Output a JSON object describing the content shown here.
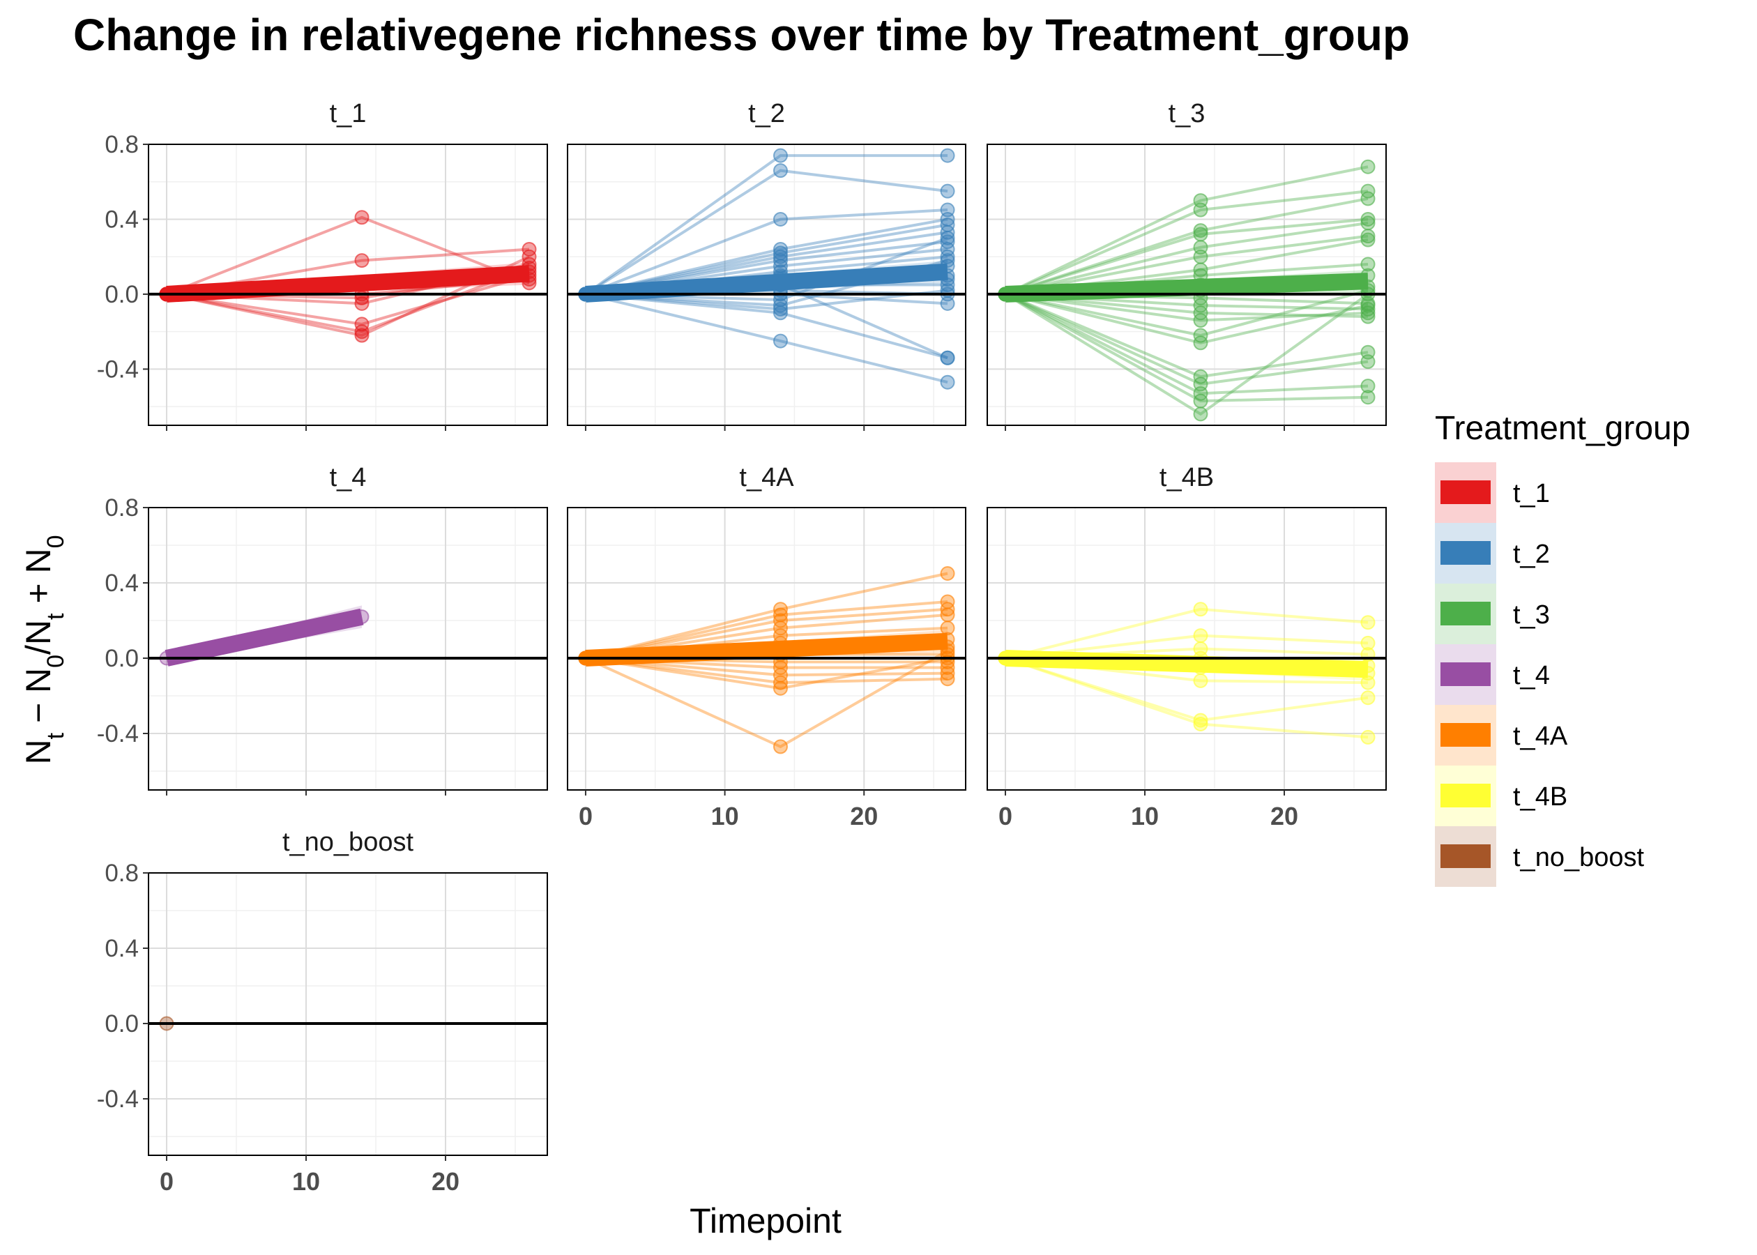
{
  "chart_data": {
    "type": "line",
    "title": "Change in relativegene richness over time by Treatment_group",
    "xlabel": "Timepoint",
    "ylabel_parts": [
      "N",
      "t",
      " − N",
      "0",
      "/N",
      "t",
      " + N",
      "0"
    ],
    "ylim": [
      -0.7,
      0.8
    ],
    "xlim": [
      -1.3,
      27.3
    ],
    "y_ticks": [
      0.8,
      0.4,
      0.0,
      -0.4
    ],
    "y_tick_labels": [
      "0.8",
      "0.4",
      "0.0",
      "-0.4"
    ],
    "x_ticks": [
      0,
      10,
      20
    ],
    "x_tick_labels": [
      "0",
      "10",
      "20"
    ],
    "grid": true,
    "legend": {
      "title": "Treatment_group",
      "position": "right",
      "entries": [
        "t_1",
        "t_2",
        "t_3",
        "t_4",
        "t_4A",
        "t_4B",
        "t_no_boost"
      ]
    },
    "colors": {
      "t_1": "#E41A1C",
      "t_2": "#377EB8",
      "t_3": "#4DAF4A",
      "t_4": "#984EA3",
      "t_4A": "#FF7F00",
      "t_4B": "#FFFF33",
      "t_no_boost": "#A65628"
    },
    "panels": [
      {
        "name": "t_1",
        "trend": [
          [
            0,
            0.0
          ],
          [
            26,
            0.11
          ]
        ],
        "series": [
          [
            [
              0,
              0
            ],
            [
              14,
              0.41
            ],
            [
              26,
              0.06
            ]
          ],
          [
            [
              0,
              0
            ],
            [
              14,
              0.18
            ],
            [
              26,
              0.24
            ]
          ],
          [
            [
              0,
              0
            ],
            [
              14,
              -0.22
            ],
            [
              26,
              0.2
            ]
          ],
          [
            [
              0,
              0
            ],
            [
              14,
              -0.2
            ],
            [
              26,
              0.14
            ]
          ],
          [
            [
              0,
              0
            ],
            [
              14,
              -0.16
            ],
            [
              26,
              0.1
            ]
          ],
          [
            [
              0,
              0
            ],
            [
              14,
              -0.05
            ],
            [
              26,
              0.16
            ]
          ],
          [
            [
              0,
              0
            ],
            [
              14,
              0.0
            ],
            [
              26,
              0.08
            ]
          ],
          [
            [
              0,
              0
            ],
            [
              14,
              -0.02
            ],
            [
              26,
              0.12
            ]
          ]
        ]
      },
      {
        "name": "t_2",
        "trend": [
          [
            0,
            0.0
          ],
          [
            26,
            0.12
          ]
        ],
        "series": [
          [
            [
              0,
              0
            ],
            [
              14,
              0.74
            ],
            [
              26,
              0.74
            ]
          ],
          [
            [
              0,
              0
            ],
            [
              14,
              0.66
            ],
            [
              26,
              0.55
            ]
          ],
          [
            [
              0,
              0
            ],
            [
              14,
              0.4
            ],
            [
              26,
              0.45
            ]
          ],
          [
            [
              0,
              0
            ],
            [
              14,
              0.24
            ],
            [
              26,
              0.4
            ]
          ],
          [
            [
              0,
              0
            ],
            [
              14,
              0.22
            ],
            [
              26,
              0.37
            ]
          ],
          [
            [
              0,
              0
            ],
            [
              14,
              0.2
            ],
            [
              26,
              0.33
            ]
          ],
          [
            [
              0,
              0
            ],
            [
              14,
              0.18
            ],
            [
              26,
              0.28
            ]
          ],
          [
            [
              0,
              0
            ],
            [
              14,
              0.15
            ],
            [
              26,
              0.24
            ]
          ],
          [
            [
              0,
              0
            ],
            [
              14,
              0.12
            ],
            [
              26,
              0.2
            ]
          ],
          [
            [
              0,
              0
            ],
            [
              14,
              0.1
            ],
            [
              26,
              0.15
            ]
          ],
          [
            [
              0,
              0
            ],
            [
              14,
              0.08
            ],
            [
              26,
              0.1
            ]
          ],
          [
            [
              0,
              0
            ],
            [
              14,
              0.05
            ],
            [
              26,
              0.05
            ]
          ],
          [
            [
              0,
              0
            ],
            [
              14,
              0.02
            ],
            [
              26,
              0.0
            ]
          ],
          [
            [
              0,
              0
            ],
            [
              14,
              0.0
            ],
            [
              26,
              -0.05
            ]
          ],
          [
            [
              0,
              0
            ],
            [
              14,
              -0.03
            ],
            [
              26,
              0.3
            ]
          ],
          [
            [
              0,
              0
            ],
            [
              14,
              -0.06
            ],
            [
              26,
              0.18
            ]
          ],
          [
            [
              0,
              0
            ],
            [
              14,
              -0.08
            ],
            [
              26,
              0.02
            ]
          ],
          [
            [
              0,
              0
            ],
            [
              14,
              -0.1
            ],
            [
              26,
              -0.34
            ]
          ],
          [
            [
              0,
              0
            ],
            [
              14,
              0.05
            ],
            [
              26,
              -0.34
            ]
          ],
          [
            [
              0,
              0
            ],
            [
              14,
              -0.25
            ],
            [
              26,
              -0.47
            ]
          ],
          [
            [
              0,
              0
            ],
            [
              14,
              0.09
            ],
            [
              26,
              0.08
            ]
          ]
        ]
      },
      {
        "name": "t_3",
        "trend": [
          [
            0,
            0.0
          ],
          [
            26,
            0.07
          ]
        ],
        "series": [
          [
            [
              0,
              0
            ],
            [
              14,
              0.5
            ],
            [
              26,
              0.68
            ]
          ],
          [
            [
              0,
              0
            ],
            [
              14,
              0.45
            ],
            [
              26,
              0.55
            ]
          ],
          [
            [
              0,
              0
            ],
            [
              14,
              0.34
            ],
            [
              26,
              0.51
            ]
          ],
          [
            [
              0,
              0
            ],
            [
              14,
              0.32
            ],
            [
              26,
              0.4
            ]
          ],
          [
            [
              0,
              0
            ],
            [
              14,
              0.25
            ],
            [
              26,
              0.38
            ]
          ],
          [
            [
              0,
              0
            ],
            [
              14,
              0.2
            ],
            [
              26,
              0.31
            ]
          ],
          [
            [
              0,
              0
            ],
            [
              14,
              0.13
            ],
            [
              26,
              0.29
            ]
          ],
          [
            [
              0,
              0
            ],
            [
              14,
              0.1
            ],
            [
              26,
              0.16
            ]
          ],
          [
            [
              0,
              0
            ],
            [
              14,
              0.05
            ],
            [
              26,
              0.1
            ]
          ],
          [
            [
              0,
              0
            ],
            [
              14,
              0.02
            ],
            [
              26,
              0.04
            ]
          ],
          [
            [
              0,
              0
            ],
            [
              14,
              -0.02
            ],
            [
              26,
              -0.05
            ]
          ],
          [
            [
              0,
              0
            ],
            [
              14,
              -0.06
            ],
            [
              26,
              -0.08
            ]
          ],
          [
            [
              0,
              0
            ],
            [
              14,
              -0.1
            ],
            [
              26,
              -0.12
            ]
          ],
          [
            [
              0,
              0
            ],
            [
              14,
              -0.14
            ],
            [
              26,
              -0.1
            ]
          ],
          [
            [
              0,
              0
            ],
            [
              14,
              -0.22
            ],
            [
              26,
              0.02
            ]
          ],
          [
            [
              0,
              0
            ],
            [
              14,
              -0.26
            ],
            [
              26,
              -0.06
            ]
          ],
          [
            [
              0,
              0
            ],
            [
              14,
              -0.44
            ],
            [
              26,
              -0.31
            ]
          ],
          [
            [
              0,
              0
            ],
            [
              14,
              -0.48
            ],
            [
              26,
              -0.36
            ]
          ],
          [
            [
              0,
              0
            ],
            [
              14,
              -0.53
            ],
            [
              26,
              -0.49
            ]
          ],
          [
            [
              0,
              0
            ],
            [
              14,
              -0.57
            ],
            [
              26,
              -0.55
            ]
          ],
          [
            [
              0,
              0
            ],
            [
              14,
              -0.64
            ],
            [
              26,
              0.0
            ]
          ]
        ]
      },
      {
        "name": "t_4",
        "trend": [
          [
            0,
            0.0
          ],
          [
            14,
            0.22
          ]
        ],
        "series": [
          [
            [
              0,
              0
            ],
            [
              14,
              0.22
            ]
          ]
        ]
      },
      {
        "name": "t_4A",
        "trend": [
          [
            0,
            0.0
          ],
          [
            26,
            0.09
          ]
        ],
        "series": [
          [
            [
              0,
              0
            ],
            [
              14,
              0.26
            ],
            [
              26,
              0.45
            ]
          ],
          [
            [
              0,
              0
            ],
            [
              14,
              0.23
            ],
            [
              26,
              0.3
            ]
          ],
          [
            [
              0,
              0
            ],
            [
              14,
              0.2
            ],
            [
              26,
              0.26
            ]
          ],
          [
            [
              0,
              0
            ],
            [
              14,
              0.16
            ],
            [
              26,
              0.23
            ]
          ],
          [
            [
              0,
              0
            ],
            [
              14,
              0.12
            ],
            [
              26,
              0.16
            ]
          ],
          [
            [
              0,
              0
            ],
            [
              14,
              0.08
            ],
            [
              26,
              0.1
            ]
          ],
          [
            [
              0,
              0
            ],
            [
              14,
              0.05
            ],
            [
              26,
              0.06
            ]
          ],
          [
            [
              0,
              0
            ],
            [
              14,
              0.02
            ],
            [
              26,
              0.02
            ]
          ],
          [
            [
              0,
              0
            ],
            [
              14,
              -0.02
            ],
            [
              26,
              -0.02
            ]
          ],
          [
            [
              0,
              0
            ],
            [
              14,
              -0.05
            ],
            [
              26,
              -0.05
            ]
          ],
          [
            [
              0,
              0
            ],
            [
              14,
              -0.09
            ],
            [
              26,
              -0.08
            ]
          ],
          [
            [
              0,
              0
            ],
            [
              14,
              -0.13
            ],
            [
              26,
              -0.11
            ]
          ],
          [
            [
              0,
              0
            ],
            [
              14,
              -0.16
            ],
            [
              26,
              0.0
            ]
          ],
          [
            [
              0,
              0
            ],
            [
              14,
              -0.47
            ],
            [
              26,
              0.04
            ]
          ]
        ]
      },
      {
        "name": "t_4B",
        "trend": [
          [
            0,
            0.0
          ],
          [
            26,
            -0.06
          ]
        ],
        "series": [
          [
            [
              0,
              0
            ],
            [
              14,
              0.26
            ],
            [
              26,
              0.19
            ]
          ],
          [
            [
              0,
              0
            ],
            [
              14,
              0.12
            ],
            [
              26,
              0.08
            ]
          ],
          [
            [
              0,
              0
            ],
            [
              14,
              0.05
            ],
            [
              26,
              0.02
            ]
          ],
          [
            [
              0,
              0
            ],
            [
              14,
              0.0
            ],
            [
              26,
              -0.04
            ]
          ],
          [
            [
              0,
              0
            ],
            [
              14,
              -0.05
            ],
            [
              26,
              -0.08
            ]
          ],
          [
            [
              0,
              0
            ],
            [
              14,
              -0.12
            ],
            [
              26,
              -0.13
            ]
          ],
          [
            [
              0,
              0
            ],
            [
              14,
              -0.33
            ],
            [
              26,
              -0.21
            ]
          ],
          [
            [
              0,
              0
            ],
            [
              14,
              -0.35
            ],
            [
              26,
              -0.42
            ]
          ]
        ]
      },
      {
        "name": "t_no_boost",
        "trend": [],
        "series": [
          [
            [
              0,
              0
            ]
          ]
        ]
      }
    ]
  }
}
